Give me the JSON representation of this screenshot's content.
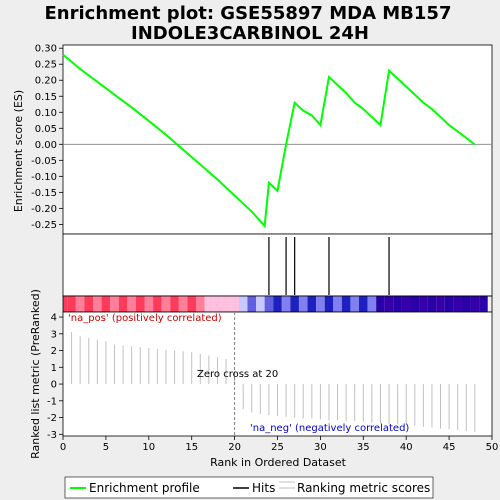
{
  "chart_data": {
    "type": "line",
    "title_line1": "Enrichment plot: GSE55897 MDA MB157",
    "title_line2": "INDOLE3CARBINOL 24H",
    "xlabel": "Rank in Ordered Dataset",
    "ylabel_top": "Enrichment score (ES)",
    "ylabel_bottom": "Ranked list metric (PreRanked)",
    "xlim": [
      0,
      50
    ],
    "x_ticks": [
      "0",
      "5",
      "10",
      "15",
      "20",
      "25",
      "30",
      "35",
      "40",
      "45",
      "50"
    ],
    "es_ylim": [
      -0.28,
      0.31
    ],
    "es_ticks": [
      "0.30",
      "0.25",
      "0.20",
      "0.15",
      "0.10",
      "0.05",
      "0.00",
      "-0.05",
      "-0.10",
      "-0.15",
      "-0.20",
      "-0.25"
    ],
    "metric_ylim": [
      -3.1,
      4.3
    ],
    "metric_ticks": [
      "4",
      "3",
      "2",
      "1",
      "0",
      "-1",
      "-2",
      "-3"
    ],
    "es_curve": {
      "x": [
        0,
        2,
        4,
        6,
        8,
        10,
        12,
        14,
        16,
        18,
        20,
        22,
        23.5,
        24,
        25,
        26,
        27,
        28,
        29,
        30,
        31,
        32,
        33,
        34,
        35,
        36,
        37,
        38,
        39,
        40,
        41,
        42,
        43,
        44,
        45,
        46,
        47,
        48
      ],
      "y": [
        0.28,
        0.235,
        0.195,
        0.155,
        0.115,
        0.073,
        0.03,
        -0.017,
        -0.063,
        -0.11,
        -0.16,
        -0.21,
        -0.255,
        -0.12,
        -0.145,
        0.0,
        0.13,
        0.105,
        0.09,
        0.06,
        0.21,
        0.185,
        0.16,
        0.13,
        0.11,
        0.085,
        0.06,
        0.23,
        0.205,
        0.18,
        0.155,
        0.13,
        0.11,
        0.085,
        0.06,
        0.04,
        0.02,
        -0.001
      ]
    },
    "hits": [
      24,
      26,
      27,
      31,
      38
    ],
    "metric_bars": {
      "x": [
        1,
        2,
        3,
        4,
        5,
        6,
        7,
        8,
        9,
        10,
        11,
        12,
        13,
        14,
        15,
        16,
        17,
        18,
        19,
        20,
        21,
        22,
        23,
        24,
        25,
        26,
        27,
        28,
        29,
        30,
        31,
        32,
        33,
        34,
        35,
        36,
        37,
        38,
        39,
        40,
        41,
        42,
        43,
        44,
        45,
        46,
        47,
        48
      ],
      "y": [
        3.1,
        2.85,
        2.75,
        2.65,
        2.55,
        2.35,
        2.3,
        2.25,
        2.2,
        2.15,
        2.1,
        2.05,
        2.0,
        1.95,
        1.9,
        1.8,
        1.7,
        1.6,
        1.5,
        0.6,
        -1.5,
        -1.7,
        -1.8,
        -1.85,
        -1.9,
        -1.95,
        -2.0,
        -2.05,
        -2.05,
        -2.1,
        -2.15,
        -2.15,
        -2.2,
        -2.2,
        -2.25,
        -2.3,
        -2.35,
        -2.4,
        -2.4,
        -2.45,
        -2.5,
        -2.55,
        -2.6,
        -2.65,
        -2.7,
        -2.75,
        -2.8,
        -2.85
      ]
    },
    "zero_cross_x": 20,
    "annotations": {
      "pos": "'na_pos' (positively correlated)",
      "neg": "'na_neg' (negatively correlated)",
      "zero": "Zero cross at 20"
    },
    "legend": [
      "Enrichment profile",
      "Hits",
      "Ranking metric scores"
    ],
    "colors": {
      "curve": "#00ff00",
      "hit": "#000000",
      "pos_text": "#cc0000",
      "neg_text": "#0000cc",
      "bar": "#c0c0c0"
    }
  }
}
